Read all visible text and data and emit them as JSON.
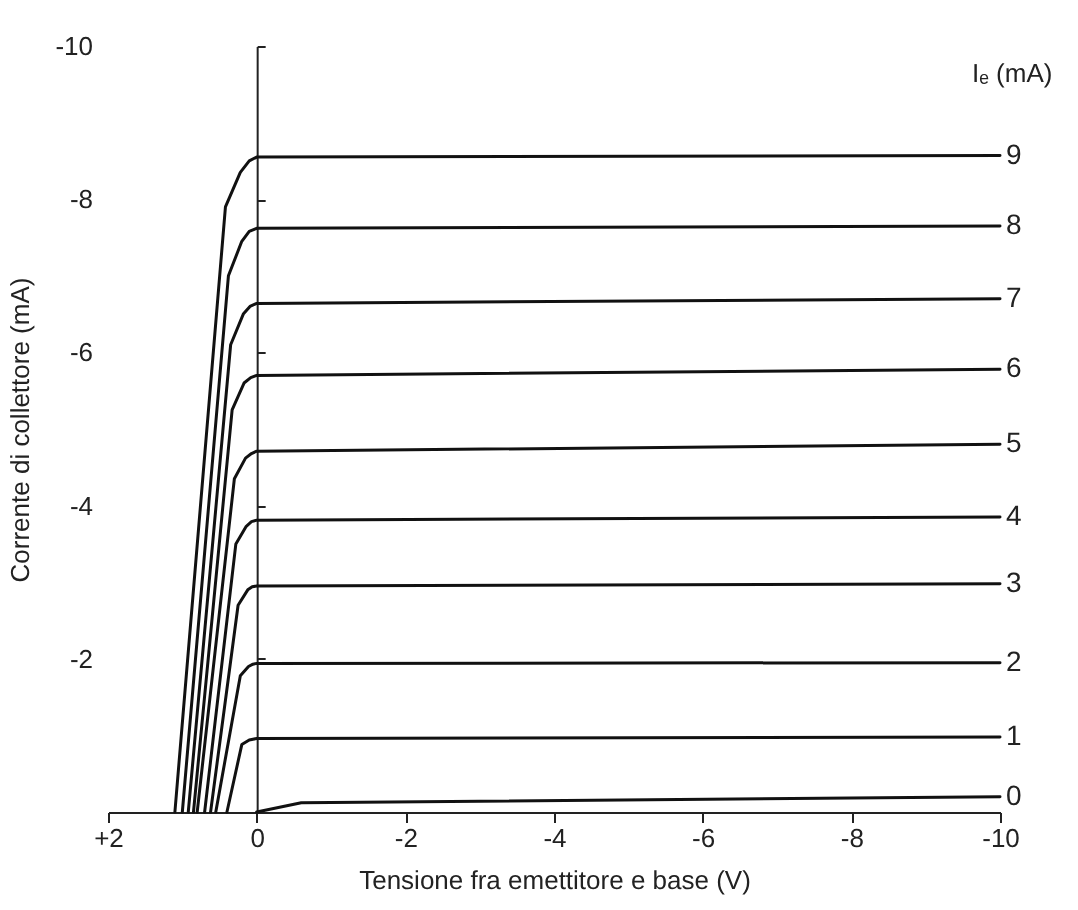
{
  "chart_data": {
    "type": "line",
    "xlabel": "Tensione fra emettitore e base (V)",
    "ylabel": "Corrente di collettore (mA)",
    "legend_title": "Iₑ (mA)",
    "xlim": [
      2,
      -10
    ],
    "xticks": [
      {
        "value": 2,
        "label": "+2"
      },
      0,
      -2,
      -4,
      -6,
      -8,
      -10
    ],
    "ylim": [
      0,
      -10
    ],
    "yticks": [
      -2,
      -4,
      -6,
      -8,
      -10
    ],
    "line_style": "solid",
    "series": [
      {
        "name": "9",
        "color": "#111111",
        "x": [
          1.1,
          0.42,
          0.22,
          0.1,
          0,
          -10
        ],
        "values": [
          0,
          -7.9,
          -8.35,
          -8.5,
          -8.55,
          -8.57
        ]
      },
      {
        "name": "8",
        "color": "#111111",
        "x": [
          1.0,
          0.38,
          0.2,
          0.1,
          0,
          -10
        ],
        "values": [
          0,
          -7.0,
          -7.45,
          -7.58,
          -7.62,
          -7.65
        ]
      },
      {
        "name": "7",
        "color": "#111111",
        "x": [
          0.92,
          0.35,
          0.18,
          0.09,
          0,
          -10
        ],
        "values": [
          0,
          -6.1,
          -6.5,
          -6.6,
          -6.64,
          -6.7
        ]
      },
      {
        "name": "6",
        "color": "#111111",
        "x": [
          0.85,
          0.33,
          0.17,
          0.08,
          0,
          -10
        ],
        "values": [
          0,
          -5.25,
          -5.6,
          -5.67,
          -5.7,
          -5.78
        ]
      },
      {
        "name": "5",
        "color": "#111111",
        "x": [
          0.8,
          0.3,
          0.15,
          0.07,
          0,
          -10
        ],
        "values": [
          0,
          -4.35,
          -4.62,
          -4.68,
          -4.71,
          -4.8
        ]
      },
      {
        "name": "4",
        "color": "#111111",
        "x": [
          0.7,
          0.28,
          0.14,
          0.07,
          0,
          -10
        ],
        "values": [
          0,
          -3.5,
          -3.73,
          -3.79,
          -3.81,
          -3.85
        ]
      },
      {
        "name": "3",
        "color": "#111111",
        "x": [
          0.62,
          0.25,
          0.12,
          0.06,
          0,
          -10
        ],
        "values": [
          0,
          -2.7,
          -2.9,
          -2.94,
          -2.95,
          -2.98
        ]
      },
      {
        "name": "2",
        "color": "#111111",
        "x": [
          0.55,
          0.22,
          0.11,
          0.05,
          0,
          -10
        ],
        "values": [
          0,
          -1.78,
          -1.9,
          -1.93,
          -1.94,
          -1.95
        ]
      },
      {
        "name": "1",
        "color": "#111111",
        "x": [
          0.4,
          0.2,
          0.1,
          0.05,
          0,
          -10
        ],
        "values": [
          0,
          -0.88,
          -0.94,
          -0.95,
          -0.96,
          -0.98
        ]
      },
      {
        "name": "0",
        "color": "#111111",
        "x": [
          0,
          -0.6,
          -10
        ],
        "values": [
          0,
          -0.12,
          -0.2
        ]
      }
    ]
  }
}
